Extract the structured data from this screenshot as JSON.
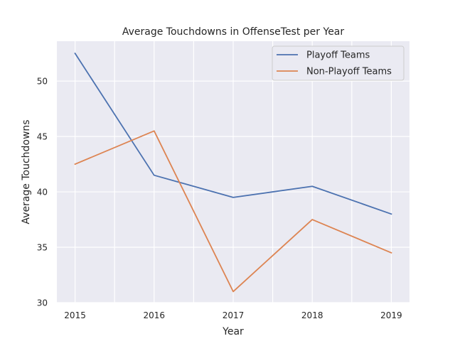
{
  "chart_data": {
    "type": "line",
    "title": "Average Touchdowns in OffenseTest per Year",
    "xlabel": "Year",
    "ylabel": "Average Touchdowns",
    "x": [
      2015,
      2016,
      2017,
      2018,
      2019
    ],
    "xticks": [
      "2015",
      "2016",
      "2017",
      "2018",
      "2019"
    ],
    "yticks": [
      30,
      35,
      40,
      45,
      50
    ],
    "ylim": [
      30,
      53.6
    ],
    "grid": true,
    "legend_position": "top-right",
    "series": [
      {
        "name": "Playoff Teams",
        "color": "#4c72b0",
        "values": [
          52.5,
          41.5,
          39.5,
          40.5,
          38.0
        ]
      },
      {
        "name": "Non-Playoff Teams",
        "color": "#dd8452",
        "values": [
          42.5,
          45.5,
          31.0,
          37.5,
          34.5
        ]
      }
    ]
  }
}
